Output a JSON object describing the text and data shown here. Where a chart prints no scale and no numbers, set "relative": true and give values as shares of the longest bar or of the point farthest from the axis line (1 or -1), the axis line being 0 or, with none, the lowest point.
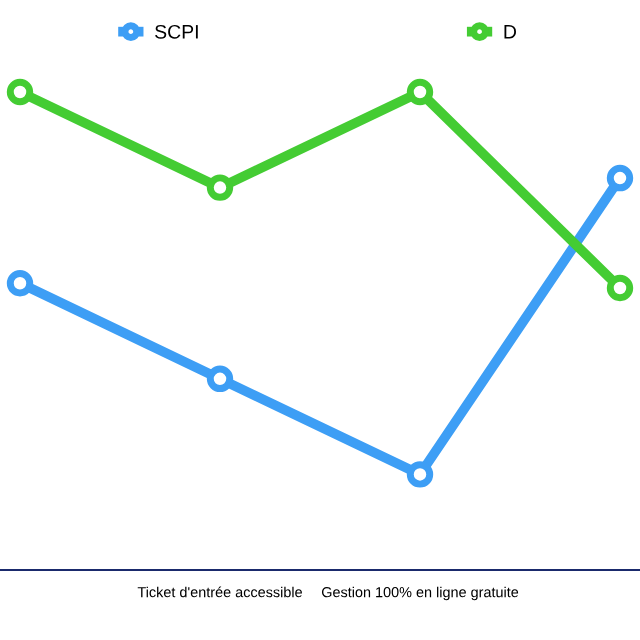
{
  "chart_data": {
    "type": "line",
    "relative": true,
    "categories": [
      null,
      "Ticket d'entrée accessible",
      "Gestion 100% en ligne gratuite",
      null
    ],
    "series": [
      {
        "name": "SCPI",
        "color": "#3d9ef5",
        "values": [
          0.6,
          0.4,
          0.2,
          0.82
        ]
      },
      {
        "name": "D",
        "color": "#44cc33",
        "values": [
          1.0,
          0.8,
          1.0,
          0.59
        ]
      }
    ],
    "marker": "circle",
    "line_style": "solid",
    "legend": "top"
  }
}
